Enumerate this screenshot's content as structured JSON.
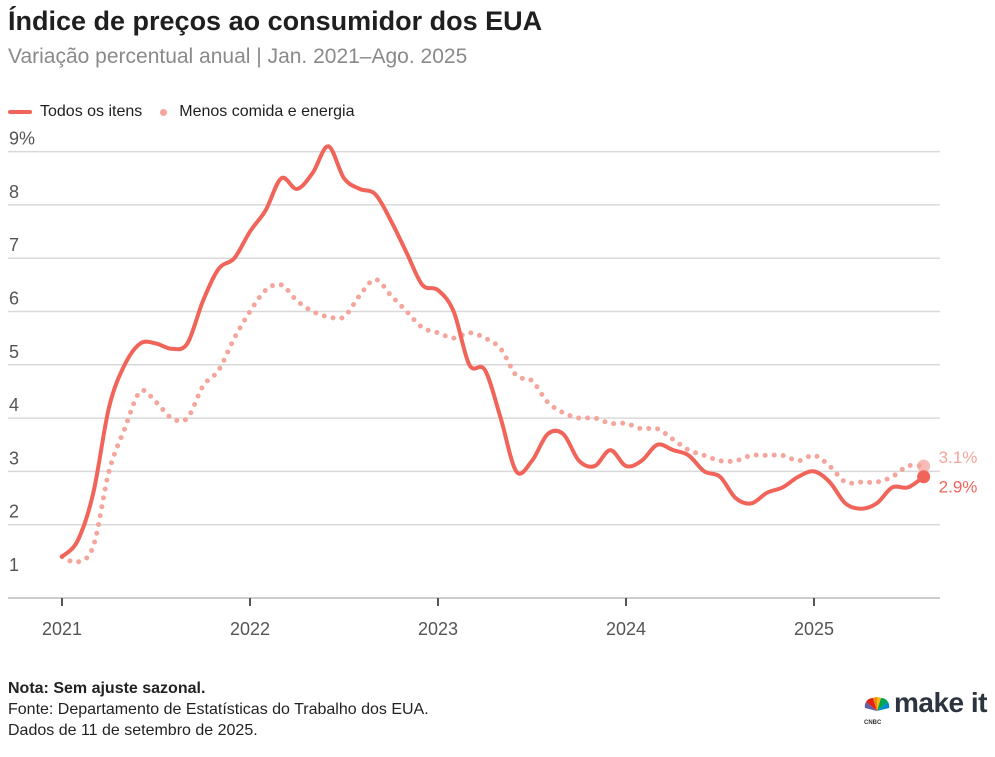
{
  "header": {
    "title": "Índice de preços ao consumidor dos EUA",
    "subtitle": "Variação percentual anual | Jan. 2021–Ago. 2025"
  },
  "legend": {
    "all_items": "Todos os itens",
    "core": "Menos comida e energia"
  },
  "footer": {
    "note": "Nota: Sem ajuste sazonal.",
    "source": "Fonte: Departamento de Estatísticas do Trabalho dos EUA.",
    "date": "Dados de 11 de setembro de 2025.",
    "brand_small": "CNBC",
    "brand": "make it"
  },
  "colors": {
    "all_items": "#f0645a",
    "core": "#f4a59c",
    "grid": "#d9d9d9",
    "axis": "#555555"
  },
  "chart_data": {
    "type": "line",
    "title": "Índice de preços ao consumidor dos EUA",
    "subtitle": "Variação percentual anual | Jan. 2021–Ago. 2025",
    "x_start": "2021-01",
    "x_end": "2025-08",
    "x_ticks": [
      "2021",
      "2022",
      "2023",
      "2024",
      "2025"
    ],
    "y_ticks": [
      "1",
      "2",
      "3",
      "4",
      "5",
      "6",
      "7",
      "8",
      "9%"
    ],
    "ylim": [
      1,
      9
    ],
    "grid": true,
    "legend_position": "top-left",
    "x": [
      "2021-01",
      "2021-02",
      "2021-03",
      "2021-04",
      "2021-05",
      "2021-06",
      "2021-07",
      "2021-08",
      "2021-09",
      "2021-10",
      "2021-11",
      "2021-12",
      "2022-01",
      "2022-02",
      "2022-03",
      "2022-04",
      "2022-05",
      "2022-06",
      "2022-07",
      "2022-08",
      "2022-09",
      "2022-10",
      "2022-11",
      "2022-12",
      "2023-01",
      "2023-02",
      "2023-03",
      "2023-04",
      "2023-05",
      "2023-06",
      "2023-07",
      "2023-08",
      "2023-09",
      "2023-10",
      "2023-11",
      "2023-12",
      "2024-01",
      "2024-02",
      "2024-03",
      "2024-04",
      "2024-05",
      "2024-06",
      "2024-07",
      "2024-08",
      "2024-09",
      "2024-10",
      "2024-11",
      "2024-12",
      "2025-01",
      "2025-02",
      "2025-03",
      "2025-04",
      "2025-05",
      "2025-06",
      "2025-07",
      "2025-08"
    ],
    "series": [
      {
        "name": "Todos os itens",
        "style": "solid",
        "end_label": "2.9%",
        "values": [
          1.4,
          1.7,
          2.6,
          4.2,
          5.0,
          5.4,
          5.4,
          5.3,
          5.4,
          6.2,
          6.8,
          7.0,
          7.5,
          7.9,
          8.5,
          8.3,
          8.6,
          9.1,
          8.5,
          8.3,
          8.2,
          7.7,
          7.1,
          6.5,
          6.4,
          6.0,
          5.0,
          4.9,
          4.0,
          3.0,
          3.2,
          3.7,
          3.7,
          3.2,
          3.1,
          3.4,
          3.1,
          3.2,
          3.5,
          3.4,
          3.3,
          3.0,
          2.9,
          2.5,
          2.4,
          2.6,
          2.7,
          2.9,
          3.0,
          2.8,
          2.4,
          2.3,
          2.4,
          2.7,
          2.7,
          2.9
        ]
      },
      {
        "name": "Menos comida e energia",
        "style": "dotted",
        "end_label": "3.1%",
        "values": [
          1.4,
          1.3,
          1.6,
          3.0,
          3.8,
          4.5,
          4.3,
          4.0,
          4.0,
          4.6,
          4.9,
          5.5,
          6.0,
          6.4,
          6.5,
          6.2,
          6.0,
          5.9,
          5.9,
          6.3,
          6.6,
          6.3,
          6.0,
          5.7,
          5.6,
          5.5,
          5.6,
          5.5,
          5.3,
          4.8,
          4.7,
          4.3,
          4.1,
          4.0,
          4.0,
          3.9,
          3.9,
          3.8,
          3.8,
          3.6,
          3.4,
          3.3,
          3.2,
          3.2,
          3.3,
          3.3,
          3.3,
          3.2,
          3.3,
          3.1,
          2.8,
          2.8,
          2.8,
          2.9,
          3.1,
          3.1
        ]
      }
    ]
  }
}
